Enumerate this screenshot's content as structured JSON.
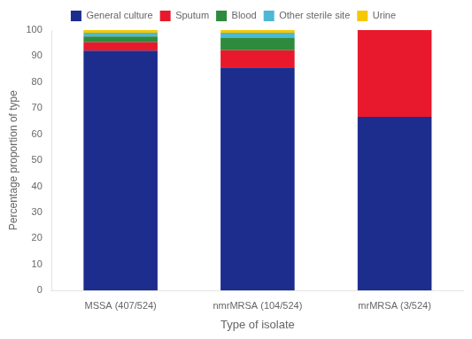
{
  "chart_data": {
    "type": "bar",
    "categories": [
      "MSSA (407/524)",
      "nmrMRSA (104/524)",
      "mrMRSA (3/524)"
    ],
    "series": [
      {
        "name": "General culture",
        "color": "#1c2d8e",
        "values": [
          92.1,
          85.6,
          66.7
        ]
      },
      {
        "name": "Sputum",
        "color": "#e8192c",
        "values": [
          3.2,
          6.7,
          33.3
        ]
      },
      {
        "name": "Blood",
        "color": "#2e8b3e",
        "values": [
          2.2,
          4.8,
          0.0
        ]
      },
      {
        "name": "Other sterile site",
        "color": "#4db8d4",
        "values": [
          1.5,
          1.9,
          0.0
        ]
      },
      {
        "name": "Urine",
        "color": "#f5c800",
        "values": [
          1.0,
          1.0,
          0.0
        ]
      }
    ],
    "xlabel": "Type of isolate",
    "ylabel": "Percentage proportion of type",
    "ylim": [
      0,
      100
    ],
    "yticks": [
      0,
      10,
      20,
      30,
      40,
      50,
      60,
      70,
      80,
      90,
      100
    ],
    "stacked": true,
    "grid": false,
    "legend": "top"
  }
}
